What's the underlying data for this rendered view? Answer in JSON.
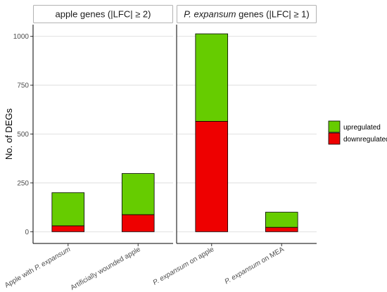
{
  "chart_data": {
    "type": "bar",
    "stacked": true,
    "ylabel": "No. of DEGs",
    "ylim": [
      -60,
      1060
    ],
    "yticks": [
      0,
      250,
      500,
      750,
      1000
    ],
    "grid": true,
    "legend_position": "right",
    "series": [
      {
        "name": "upregulated",
        "color": "#66cc00"
      },
      {
        "name": "downregulated",
        "color": "#ee0000"
      }
    ],
    "panels": [
      {
        "title_parts": [
          {
            "text": "apple genes (|LFC| ≥ 2)",
            "italic": false
          }
        ],
        "categories": [
          [
            {
              "text": "Apple with ",
              "italic": false
            },
            {
              "text": "P. expansum",
              "italic": true
            }
          ],
          [
            {
              "text": "Artificially wounded apple",
              "italic": false
            }
          ]
        ],
        "totals": [
          200,
          298
        ],
        "downregulated": [
          30,
          87
        ]
      },
      {
        "title_parts": [
          {
            "text": "P. expansum",
            "italic": true
          },
          {
            "text": " genes (|LFC| ≥ 1)",
            "italic": false
          }
        ],
        "categories": [
          [
            {
              "text": "P. expansum",
              "italic": true
            },
            {
              "text": " on apple",
              "italic": false
            }
          ],
          [
            {
              "text": "P. expansum",
              "italic": true
            },
            {
              "text": " on MEA",
              "italic": false
            }
          ]
        ],
        "totals": [
          1013,
          100
        ],
        "downregulated": [
          565,
          22
        ]
      }
    ]
  }
}
